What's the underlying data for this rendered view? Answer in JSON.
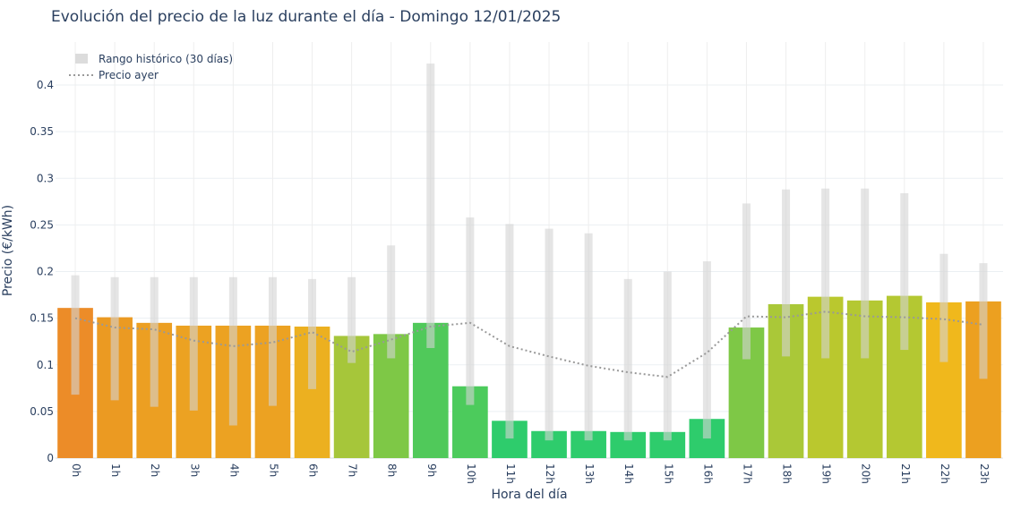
{
  "chart_data": {
    "type": "bar",
    "title": "Evolución del precio de la luz durante el día - Domingo 12/01/2025",
    "xlabel": "Hora del día",
    "ylabel": "Precio (€/kWh)",
    "ylim": [
      0,
      0.445
    ],
    "yticks": [
      0,
      0.05,
      0.1,
      0.15,
      0.2,
      0.25,
      0.3,
      0.35,
      0.4
    ],
    "ytick_labels": [
      "0",
      "0.05",
      "0.1",
      "0.15",
      "0.2",
      "0.25",
      "0.3",
      "0.35",
      "0.4"
    ],
    "grid": true,
    "legend_position": "top-left",
    "categories": [
      "0h",
      "1h",
      "2h",
      "3h",
      "4h",
      "5h",
      "6h",
      "7h",
      "8h",
      "9h",
      "10h",
      "11h",
      "12h",
      "13h",
      "14h",
      "15h",
      "16h",
      "17h",
      "18h",
      "19h",
      "20h",
      "21h",
      "22h",
      "23h"
    ],
    "series": [
      {
        "type": "bar",
        "values": [
          0.161,
          0.151,
          0.145,
          0.142,
          0.142,
          0.142,
          0.141,
          0.131,
          0.133,
          0.145,
          0.077,
          0.04,
          0.029,
          0.029,
          0.028,
          0.028,
          0.042,
          0.14,
          0.165,
          0.173,
          0.169,
          0.174,
          0.167,
          0.168
        ],
        "colors": [
          "#ec8c28",
          "#eb9a22",
          "#ec9f22",
          "#eca222",
          "#eca222",
          "#eca222",
          "#ecb020",
          "#a6c63a",
          "#7ec846",
          "#50c95a",
          "#4ccb5c",
          "#2ecc6c",
          "#2ecc6c",
          "#2ecc6c",
          "#2ecc6c",
          "#2ecc6c",
          "#2ecc6c",
          "#7ec846",
          "#aac838",
          "#bac82e",
          "#b4c832",
          "#b4c832",
          "#f0b81c",
          "#eca020"
        ]
      },
      {
        "name": "Rango histórico (30 días)",
        "type": "range",
        "color": "#dcdcdc",
        "low": [
          0.068,
          0.062,
          0.055,
          0.051,
          0.035,
          0.056,
          0.074,
          0.102,
          0.107,
          0.118,
          0.057,
          0.021,
          0.019,
          0.019,
          0.019,
          0.019,
          0.021,
          0.106,
          0.109,
          0.107,
          0.107,
          0.116,
          0.103,
          0.085
        ],
        "high": [
          0.196,
          0.194,
          0.194,
          0.194,
          0.194,
          0.194,
          0.192,
          0.194,
          0.228,
          0.423,
          0.258,
          0.251,
          0.246,
          0.241,
          0.192,
          0.2,
          0.211,
          0.273,
          0.288,
          0.289,
          0.289,
          0.284,
          0.219,
          0.209
        ]
      },
      {
        "name": "Precio ayer",
        "type": "line",
        "style": "dotted",
        "color": "#999999",
        "values": [
          0.15,
          0.14,
          0.138,
          0.126,
          0.12,
          0.124,
          0.135,
          0.114,
          0.127,
          0.141,
          0.145,
          0.12,
          0.109,
          0.099,
          0.092,
          0.087,
          0.113,
          0.152,
          0.151,
          0.157,
          0.152,
          0.151,
          0.149,
          0.143
        ]
      }
    ]
  }
}
